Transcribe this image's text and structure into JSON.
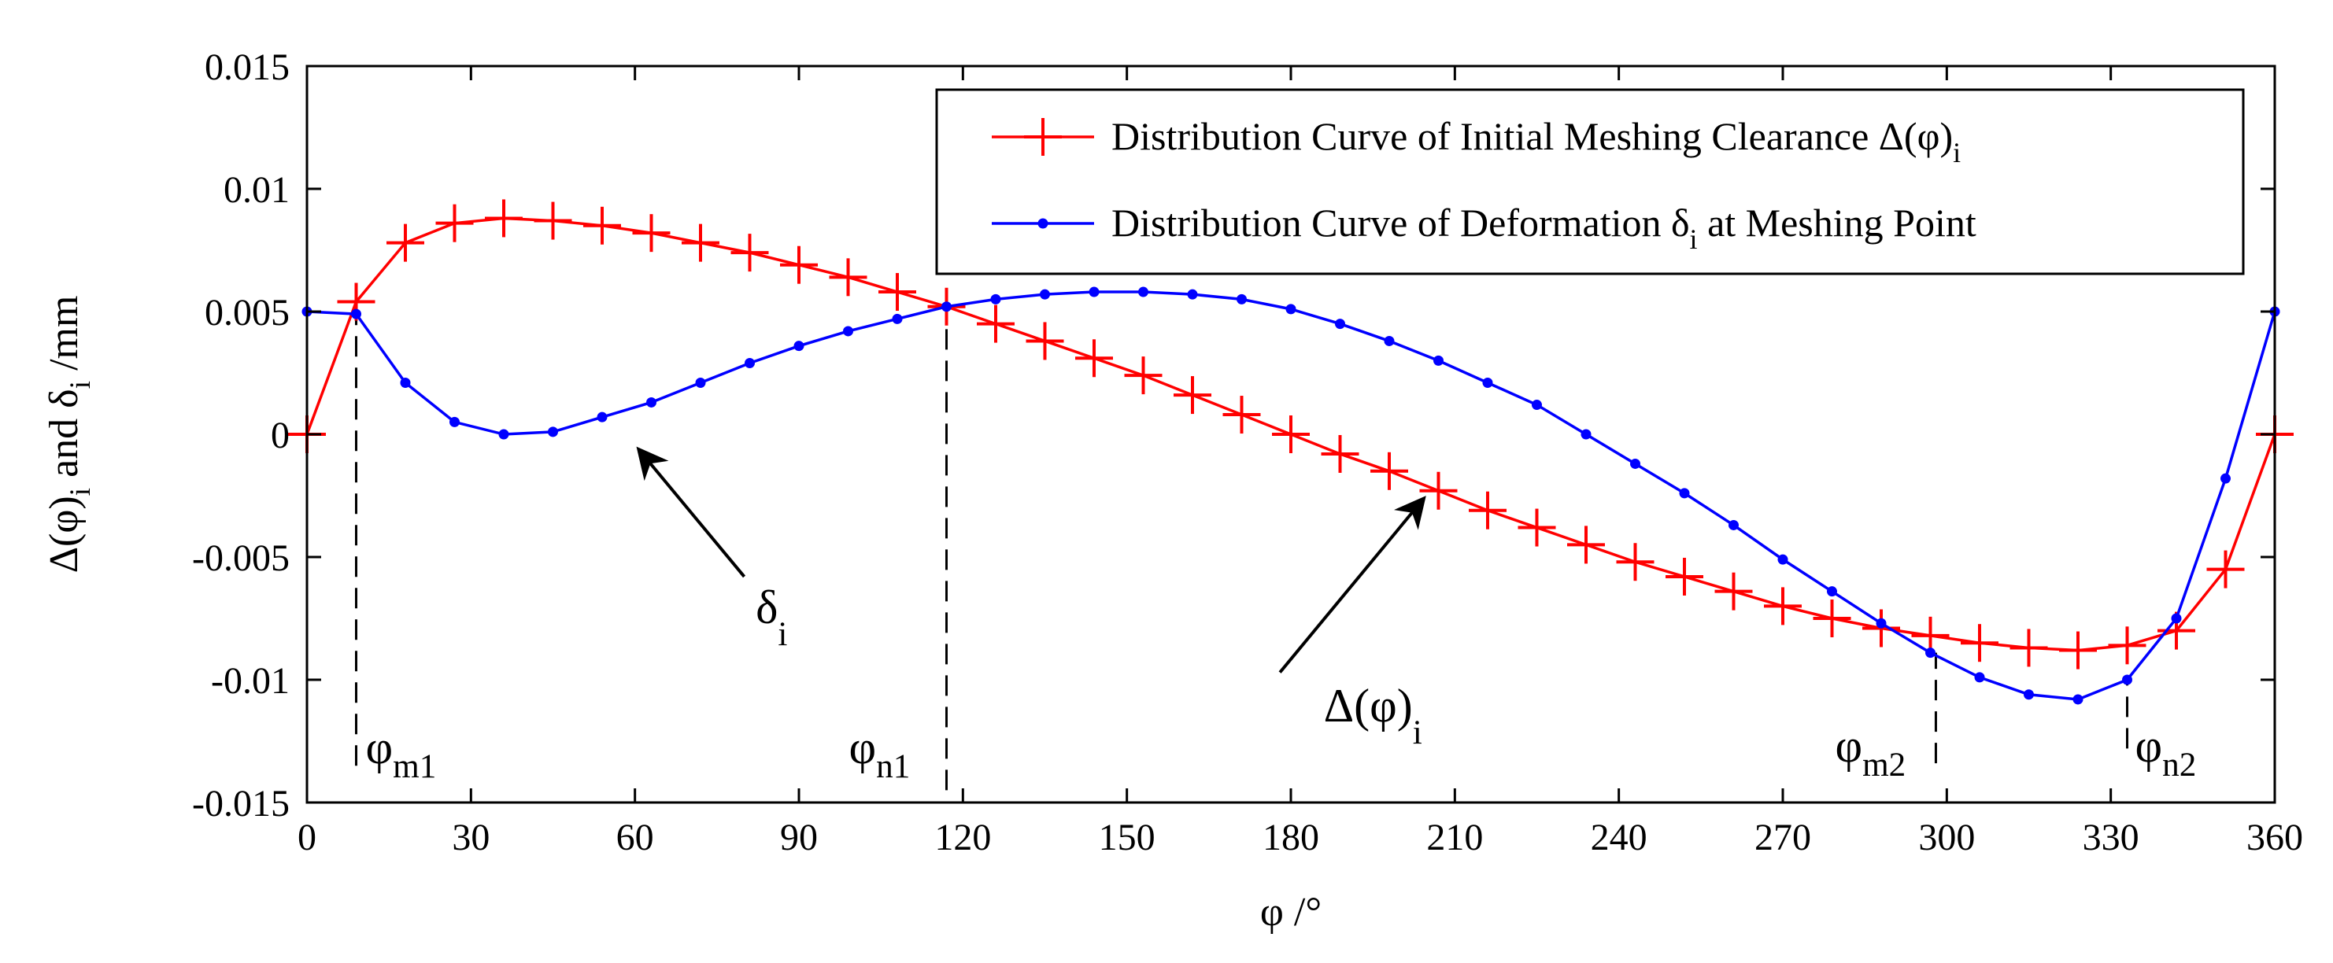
{
  "chart_data": {
    "type": "line",
    "title": "",
    "xlabel": "φ /°",
    "ylabel": "Δ(φ)_i and δ_i /mm",
    "ylabel_parts": {
      "a": "Δ(φ)",
      "a_sub": "i",
      "b": " and δ",
      "b_sub": "i",
      "c": " /mm"
    },
    "xlim": [
      0,
      360
    ],
    "ylim": [
      -0.015,
      0.015
    ],
    "xticks": [
      0,
      30,
      60,
      90,
      120,
      150,
      180,
      210,
      240,
      270,
      300,
      330,
      360
    ],
    "xtick_labels": [
      "0",
      "30",
      "60",
      "90",
      "120",
      "150",
      "180",
      "210",
      "240",
      "270",
      "300",
      "330",
      "360"
    ],
    "yticks": [
      -0.015,
      -0.01,
      -0.005,
      0,
      0.005,
      0.01,
      0.015
    ],
    "ytick_labels": [
      "-0.015",
      "-0.01",
      "-0.005",
      "0",
      "0.005",
      "0.01",
      "0.015"
    ],
    "grid": false,
    "legend_position": "top-right",
    "series": [
      {
        "name": "Distribution Curve of Initial Meshing Clearance Δ(φ)_i",
        "legend_main": "Distribution Curve of Initial Meshing Clearance Δ(φ)",
        "legend_sub": "i",
        "legend_tail": "",
        "color": "#ff0000",
        "marker": "plus",
        "x": [
          0,
          9,
          18,
          27,
          36,
          45,
          54,
          63,
          72,
          81,
          90,
          99,
          108,
          117,
          126,
          135,
          144,
          153,
          162,
          171,
          180,
          189,
          198,
          207,
          216,
          225,
          234,
          243,
          252,
          261,
          270,
          279,
          288,
          297,
          306,
          315,
          324,
          333,
          342,
          351,
          360
        ],
        "y": [
          0,
          0.0054,
          0.0078,
          0.0086,
          0.0088,
          0.0087,
          0.0085,
          0.0082,
          0.0078,
          0.0074,
          0.0069,
          0.0064,
          0.0058,
          0.0052,
          0.0045,
          0.0038,
          0.0031,
          0.0024,
          0.0016,
          0.0008,
          0.0,
          -0.0008,
          -0.0015,
          -0.0023,
          -0.0031,
          -0.0038,
          -0.0045,
          -0.0052,
          -0.0058,
          -0.0064,
          -0.007,
          -0.0075,
          -0.0079,
          -0.0082,
          -0.0085,
          -0.0087,
          -0.0088,
          -0.0086,
          -0.008,
          -0.0055,
          0
        ]
      },
      {
        "name": "Distribution Curve of Deformation δ_i at Meshing Point",
        "legend_main": "Distribution Curve of Deformation δ",
        "legend_sub": "i",
        "legend_tail": " at Meshing Point",
        "color": "#0000ff",
        "marker": "dot",
        "x": [
          0,
          9,
          18,
          27,
          36,
          45,
          54,
          63,
          72,
          81,
          90,
          99,
          108,
          117,
          126,
          135,
          144,
          153,
          162,
          171,
          180,
          189,
          198,
          207,
          216,
          225,
          234,
          243,
          252,
          261,
          270,
          279,
          288,
          297,
          306,
          315,
          324,
          333,
          342,
          351,
          360
        ],
        "y": [
          0.005,
          0.0049,
          0.0021,
          0.0005,
          0.0,
          0.0001,
          0.0007,
          0.0013,
          0.0021,
          0.0029,
          0.0036,
          0.0042,
          0.0047,
          0.0052,
          0.0055,
          0.0057,
          0.0058,
          0.0058,
          0.0057,
          0.0055,
          0.0051,
          0.0045,
          0.0038,
          0.003,
          0.0021,
          0.0012,
          0.0,
          -0.0012,
          -0.0024,
          -0.0037,
          -0.0051,
          -0.0064,
          -0.0077,
          -0.0089,
          -0.0099,
          -0.0106,
          -0.0108,
          -0.01,
          -0.0075,
          -0.0018,
          0.005
        ]
      }
    ],
    "vlines": [
      {
        "x": 9,
        "label": "φ",
        "sub": "m1",
        "from": -0.0135,
        "to": 0.0049
      },
      {
        "x": 117,
        "label": "φ",
        "sub": "n1",
        "from": -0.0145,
        "to": 0.0052
      },
      {
        "x": 298,
        "label": "φ",
        "sub": "m2",
        "from": -0.0134,
        "to": -0.0089
      },
      {
        "x": 333,
        "label": "φ",
        "sub": "n2",
        "from": -0.0128,
        "to": -0.01
      }
    ],
    "annotations": [
      {
        "name": "delta-arrow",
        "label": "δ",
        "sub": "i",
        "text_x": 85,
        "text_y": -0.0077,
        "from": [
          80,
          -0.0058
        ],
        "to": [
          61,
          -0.0007
        ]
      },
      {
        "name": "clearance-arrow",
        "label": "Δ(φ)",
        "sub": "i",
        "text_x": 195,
        "text_y": -0.0117,
        "from": [
          178,
          -0.0097
        ],
        "to": [
          204,
          -0.0027
        ]
      }
    ]
  }
}
